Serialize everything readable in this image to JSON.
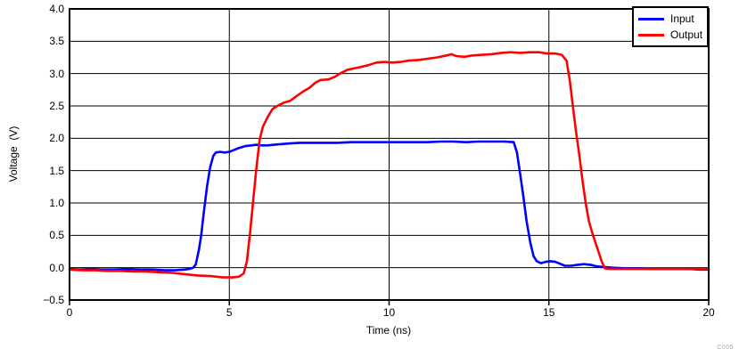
{
  "watermark": "C005",
  "chart_data": {
    "type": "line",
    "title": "",
    "xlabel": "Time (ns)",
    "ylabel": "Voltage  (V)",
    "xlim": [
      0,
      20
    ],
    "ylim": [
      -0.5,
      4.0
    ],
    "xticks": [
      0,
      5,
      10,
      15,
      20
    ],
    "xtick_labels": [
      "0",
      "5",
      "10",
      "15",
      "20"
    ],
    "yticks": [
      -0.5,
      0.0,
      0.5,
      1.0,
      1.5,
      2.0,
      2.5,
      3.0,
      3.5,
      4.0
    ],
    "ytick_labels": [
      "−0.5",
      "0.0",
      "0.5",
      "1.0",
      "1.5",
      "2.0",
      "2.5",
      "3.0",
      "3.5",
      "4.0"
    ],
    "grid": true,
    "legend_position": "top-right",
    "series": [
      {
        "name": "Input",
        "color": "#0000ff",
        "points": [
          [
            0,
            -0.02
          ],
          [
            0.3,
            -0.03
          ],
          [
            0.7,
            -0.02
          ],
          [
            1.0,
            -0.03
          ],
          [
            1.4,
            -0.03
          ],
          [
            1.8,
            -0.02
          ],
          [
            2.2,
            -0.03
          ],
          [
            2.6,
            -0.03
          ],
          [
            3.0,
            -0.04
          ],
          [
            3.3,
            -0.04
          ],
          [
            3.6,
            -0.03
          ],
          [
            3.75,
            -0.02
          ],
          [
            3.87,
            0.0
          ],
          [
            3.95,
            0.05
          ],
          [
            4.05,
            0.28
          ],
          [
            4.12,
            0.5
          ],
          [
            4.2,
            0.85
          ],
          [
            4.3,
            1.25
          ],
          [
            4.4,
            1.55
          ],
          [
            4.5,
            1.73
          ],
          [
            4.58,
            1.78
          ],
          [
            4.7,
            1.79
          ],
          [
            4.85,
            1.78
          ],
          [
            5.0,
            1.79
          ],
          [
            5.15,
            1.82
          ],
          [
            5.3,
            1.85
          ],
          [
            5.5,
            1.88
          ],
          [
            5.7,
            1.89
          ],
          [
            5.85,
            1.9
          ],
          [
            6.0,
            1.89
          ],
          [
            6.2,
            1.89
          ],
          [
            6.4,
            1.9
          ],
          [
            6.6,
            1.91
          ],
          [
            6.9,
            1.92
          ],
          [
            7.2,
            1.93
          ],
          [
            7.6,
            1.93
          ],
          [
            8.0,
            1.93
          ],
          [
            8.4,
            1.93
          ],
          [
            8.8,
            1.94
          ],
          [
            9.2,
            1.94
          ],
          [
            9.6,
            1.94
          ],
          [
            10.0,
            1.94
          ],
          [
            10.4,
            1.94
          ],
          [
            10.8,
            1.94
          ],
          [
            11.2,
            1.94
          ],
          [
            11.6,
            1.95
          ],
          [
            12.0,
            1.95
          ],
          [
            12.4,
            1.94
          ],
          [
            12.8,
            1.95
          ],
          [
            13.2,
            1.95
          ],
          [
            13.6,
            1.95
          ],
          [
            13.9,
            1.94
          ],
          [
            14.0,
            1.78
          ],
          [
            14.1,
            1.45
          ],
          [
            14.2,
            1.1
          ],
          [
            14.3,
            0.72
          ],
          [
            14.42,
            0.38
          ],
          [
            14.52,
            0.18
          ],
          [
            14.62,
            0.1
          ],
          [
            14.75,
            0.07
          ],
          [
            14.9,
            0.09
          ],
          [
            15.05,
            0.1
          ],
          [
            15.2,
            0.09
          ],
          [
            15.35,
            0.06
          ],
          [
            15.5,
            0.03
          ],
          [
            15.7,
            0.03
          ],
          [
            15.9,
            0.045
          ],
          [
            16.1,
            0.055
          ],
          [
            16.3,
            0.045
          ],
          [
            16.5,
            0.02
          ],
          [
            16.7,
            0.01
          ],
          [
            17.0,
            0.0
          ],
          [
            17.4,
            -0.01
          ],
          [
            17.8,
            -0.01
          ],
          [
            18.2,
            -0.02
          ],
          [
            18.6,
            -0.02
          ],
          [
            19.0,
            -0.02
          ],
          [
            19.4,
            -0.02
          ],
          [
            19.7,
            -0.03
          ],
          [
            20,
            -0.03
          ]
        ]
      },
      {
        "name": "Output",
        "color": "#ff0000",
        "points": [
          [
            0,
            -0.03
          ],
          [
            0.4,
            -0.04
          ],
          [
            0.8,
            -0.04
          ],
          [
            1.2,
            -0.05
          ],
          [
            1.6,
            -0.05
          ],
          [
            2.0,
            -0.06
          ],
          [
            2.4,
            -0.06
          ],
          [
            2.8,
            -0.07
          ],
          [
            3.2,
            -0.08
          ],
          [
            3.6,
            -0.1
          ],
          [
            4.0,
            -0.12
          ],
          [
            4.4,
            -0.13
          ],
          [
            4.8,
            -0.15
          ],
          [
            5.1,
            -0.15
          ],
          [
            5.3,
            -0.14
          ],
          [
            5.45,
            -0.09
          ],
          [
            5.55,
            0.1
          ],
          [
            5.65,
            0.55
          ],
          [
            5.75,
            1.05
          ],
          [
            5.85,
            1.55
          ],
          [
            5.95,
            1.98
          ],
          [
            6.05,
            2.18
          ],
          [
            6.2,
            2.33
          ],
          [
            6.35,
            2.45
          ],
          [
            6.5,
            2.5
          ],
          [
            6.7,
            2.55
          ],
          [
            6.9,
            2.58
          ],
          [
            7.1,
            2.65
          ],
          [
            7.3,
            2.72
          ],
          [
            7.5,
            2.78
          ],
          [
            7.7,
            2.86
          ],
          [
            7.85,
            2.9
          ],
          [
            8.1,
            2.91
          ],
          [
            8.3,
            2.95
          ],
          [
            8.5,
            3.01
          ],
          [
            8.7,
            3.06
          ],
          [
            8.9,
            3.08
          ],
          [
            9.1,
            3.1
          ],
          [
            9.35,
            3.13
          ],
          [
            9.6,
            3.17
          ],
          [
            9.85,
            3.18
          ],
          [
            10.1,
            3.17
          ],
          [
            10.35,
            3.18
          ],
          [
            10.6,
            3.2
          ],
          [
            10.9,
            3.21
          ],
          [
            11.2,
            3.23
          ],
          [
            11.5,
            3.25
          ],
          [
            11.8,
            3.28
          ],
          [
            11.95,
            3.3
          ],
          [
            12.1,
            3.27
          ],
          [
            12.35,
            3.26
          ],
          [
            12.6,
            3.28
          ],
          [
            12.9,
            3.29
          ],
          [
            13.2,
            3.3
          ],
          [
            13.5,
            3.32
          ],
          [
            13.8,
            3.33
          ],
          [
            14.1,
            3.32
          ],
          [
            14.4,
            3.33
          ],
          [
            14.7,
            3.33
          ],
          [
            14.95,
            3.31
          ],
          [
            15.2,
            3.31
          ],
          [
            15.4,
            3.29
          ],
          [
            15.55,
            3.2
          ],
          [
            15.65,
            2.9
          ],
          [
            15.75,
            2.5
          ],
          [
            15.85,
            2.1
          ],
          [
            15.95,
            1.75
          ],
          [
            16.05,
            1.35
          ],
          [
            16.15,
            1.0
          ],
          [
            16.25,
            0.72
          ],
          [
            16.35,
            0.55
          ],
          [
            16.45,
            0.4
          ],
          [
            16.55,
            0.25
          ],
          [
            16.65,
            0.1
          ],
          [
            16.75,
            -0.01
          ],
          [
            16.9,
            -0.02
          ],
          [
            17.3,
            -0.02
          ],
          [
            17.7,
            -0.02
          ],
          [
            18.1,
            -0.02
          ],
          [
            18.5,
            -0.02
          ],
          [
            18.9,
            -0.02
          ],
          [
            19.3,
            -0.02
          ],
          [
            19.7,
            -0.02
          ],
          [
            20,
            -0.02
          ]
        ]
      }
    ]
  }
}
